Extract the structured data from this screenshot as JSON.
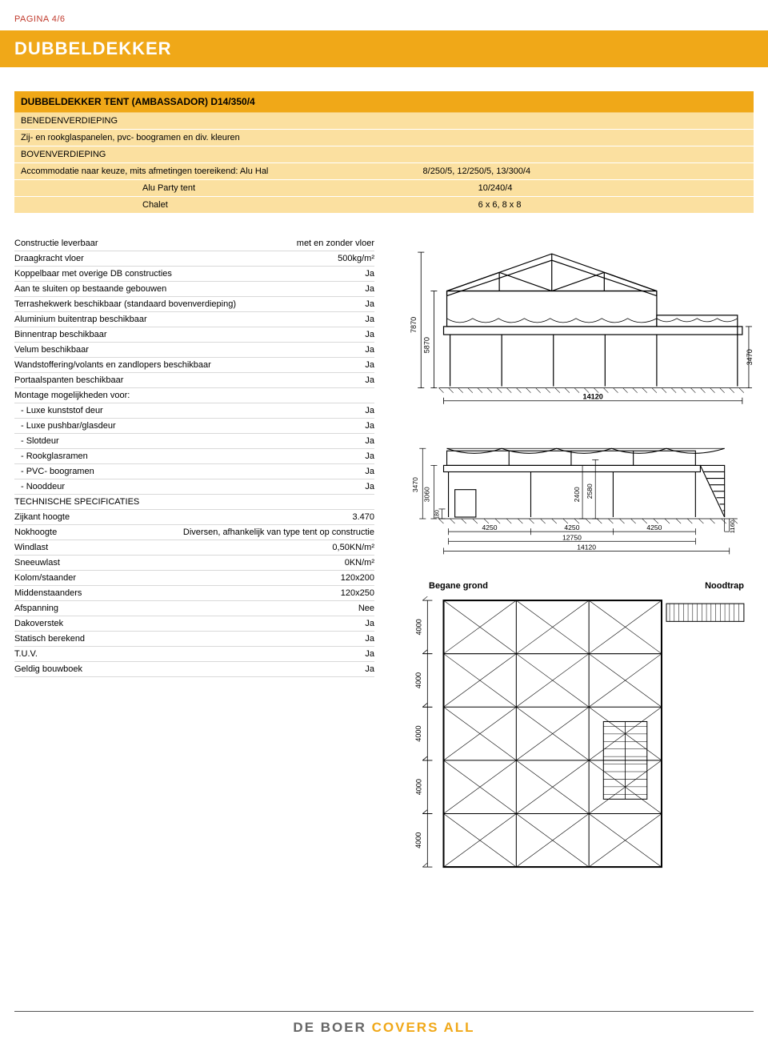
{
  "page_label": "PAGINA 4/6",
  "title": "DUBBELDEKKER",
  "colors": {
    "brand_orange": "#f0a818",
    "orange_light": "#fbe0a0",
    "rule": "#d9d9d9",
    "accent_red": "#c0392b",
    "text_grey": "#666666",
    "diagram_stroke": "#000000"
  },
  "orange_box": {
    "header": "DUBBELDEKKER TENT (AMBASSADOR) D14/350/4",
    "rows": [
      {
        "l": "BENEDENVERDIEPING",
        "r": "",
        "indent": 0
      },
      {
        "l": "Zij- en rookglaspanelen, pvc- boogramen en div. kleuren",
        "r": "",
        "indent": 0
      },
      {
        "l": "BOVENVERDIEPING",
        "r": "",
        "indent": 0
      },
      {
        "l": "Accommodatie naar keuze, mits afmetingen toereikend: Alu Hal",
        "r": "8/250/5, 12/250/5, 13/300/4",
        "indent": 0
      },
      {
        "l": "Alu Party tent",
        "r": "10/240/4",
        "indent": 2
      },
      {
        "l": "Chalet",
        "r": "6 x 6, 8 x 8",
        "indent": 2
      }
    ]
  },
  "specs": [
    {
      "label": "Constructie leverbaar",
      "value": "met en zonder vloer"
    },
    {
      "label": "Draagkracht vloer",
      "value": "500kg/m²"
    },
    {
      "label": "Koppelbaar met overige DB constructies",
      "value": "Ja"
    },
    {
      "label": "Aan te sluiten op bestaande gebouwen",
      "value": "Ja"
    },
    {
      "label": "Terrashekwerk beschikbaar (standaard bovenverdieping)",
      "value": "Ja"
    },
    {
      "label": "Aluminium buitentrap beschikbaar",
      "value": "Ja"
    },
    {
      "label": "Binnentrap beschikbaar",
      "value": "Ja"
    },
    {
      "label": "Velum beschikbaar",
      "value": "Ja"
    },
    {
      "label": "Wandstoffering/volants en zandlopers beschikbaar",
      "value": "Ja"
    },
    {
      "label": "Portaalspanten beschikbaar",
      "value": "Ja"
    },
    {
      "label": "Montage mogelijkheden voor:",
      "value": ""
    },
    {
      "label": "- Luxe kunststof deur",
      "value": "Ja",
      "indent": true
    },
    {
      "label": "- Luxe pushbar/glasdeur",
      "value": "Ja",
      "indent": true
    },
    {
      "label": "- Slotdeur",
      "value": "Ja",
      "indent": true
    },
    {
      "label": "- Rookglasramen",
      "value": "Ja",
      "indent": true
    },
    {
      "label": "- PVC- boogramen",
      "value": "Ja",
      "indent": true
    },
    {
      "label": "- Nooddeur",
      "value": "Ja",
      "indent": true
    },
    {
      "label": "TECHNISCHE SPECIFICATIES",
      "value": ""
    },
    {
      "label": "Zijkant hoogte",
      "value": "3.470"
    },
    {
      "label": "Nokhoogte",
      "value": "Diversen, afhankelijk van type tent op constructie"
    },
    {
      "label": "Windlast",
      "value": "0,50KN/m²"
    },
    {
      "label": "Sneeuwlast",
      "value": "0KN/m²"
    },
    {
      "label": "Kolom/staander",
      "value": "120x200"
    },
    {
      "label": "Middenstaanders",
      "value": "120x250"
    },
    {
      "label": "Afspanning",
      "value": "Nee"
    },
    {
      "label": "Dakoverstek",
      "value": "Ja"
    },
    {
      "label": "Statisch berekend",
      "value": "Ja"
    },
    {
      "label": "T.U.V.",
      "value": "Ja"
    },
    {
      "label": "Geldig bouwboek",
      "value": "Ja"
    }
  ],
  "diagram1": {
    "type": "elevation-drawing",
    "stroke": "#000000",
    "dims": {
      "total_height": "7870",
      "mid_height": "5870",
      "side_height": "3470",
      "width_label": "14120"
    }
  },
  "diagram2": {
    "type": "side-elevation",
    "stroke": "#000000",
    "dims": {
      "hL1": "3470",
      "hL2": "3060",
      "door": "180",
      "s1": "2400",
      "s2": "2580",
      "bay": "4250",
      "sum": "12750",
      "overall": "14120",
      "stair": "1160"
    }
  },
  "diagram3": {
    "type": "plan",
    "labels": {
      "left": "Begane grond",
      "right": "Noodtrap"
    },
    "v_dims": [
      "4000",
      "4000",
      "4000",
      "4000",
      "4000"
    ],
    "cols": 3,
    "rows": 5
  },
  "footer": {
    "grey": "DE BOER",
    "orange": "COVERS ALL"
  }
}
